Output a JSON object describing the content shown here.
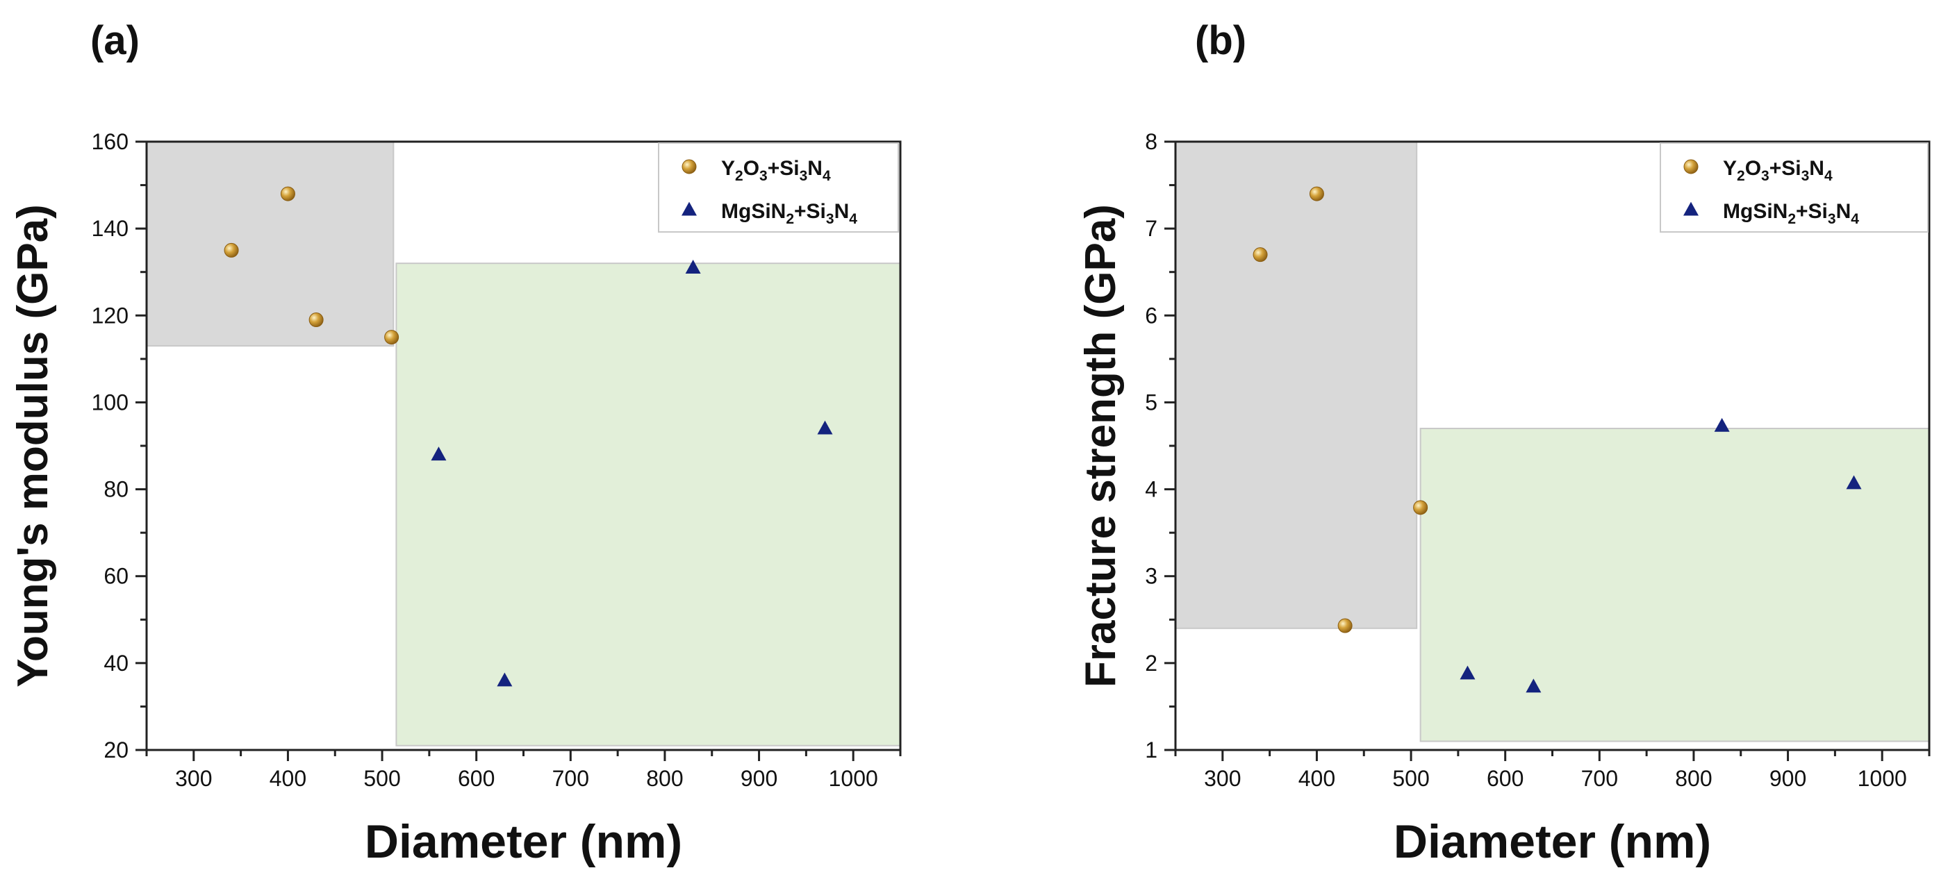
{
  "chart_data": [
    {
      "type": "scatter",
      "panel_label": "(a)",
      "xlabel": "Diameter (nm)",
      "ylabel": "Young's modulus (GPa)",
      "xlim": [
        250,
        1050
      ],
      "ylim": [
        20,
        160
      ],
      "xticks": [
        300,
        400,
        500,
        600,
        700,
        800,
        900,
        1000
      ],
      "yticks": [
        20,
        40,
        60,
        80,
        100,
        120,
        140,
        160
      ],
      "regions": [
        {
          "name": "gray-region",
          "color": "#d9d9d9",
          "x": [
            250,
            512
          ],
          "y": [
            113,
            160
          ]
        },
        {
          "name": "green-region",
          "color": "#e2efd9",
          "x": [
            515,
            1050
          ],
          "y": [
            21,
            132
          ]
        }
      ],
      "legend": {
        "position": "top-right"
      },
      "series": [
        {
          "name": "Y2O3+Si3N4",
          "marker": "circle",
          "color": "#b8860b",
          "legend_parts": [
            {
              "t": "Y"
            },
            {
              "t": "2",
              "sub": true
            },
            {
              "t": "O"
            },
            {
              "t": "3",
              "sub": true
            },
            {
              "t": "+Si"
            },
            {
              "t": "3",
              "sub": true
            },
            {
              "t": "N"
            },
            {
              "t": "4",
              "sub": true
            }
          ],
          "x": [
            340,
            400,
            430,
            510
          ],
          "y": [
            135,
            148,
            119,
            115
          ]
        },
        {
          "name": "MgSiN2+Si3N4",
          "marker": "triangle",
          "color": "#14237e",
          "legend_parts": [
            {
              "t": "MgSiN"
            },
            {
              "t": "2",
              "sub": true
            },
            {
              "t": "+Si"
            },
            {
              "t": "3",
              "sub": true
            },
            {
              "t": "N"
            },
            {
              "t": "4",
              "sub": true
            }
          ],
          "x": [
            560,
            630,
            830,
            970
          ],
          "y": [
            88,
            36,
            131,
            94
          ]
        }
      ]
    },
    {
      "type": "scatter",
      "panel_label": "(b)",
      "xlabel": "Diameter (nm)",
      "ylabel": "Fracture strength (GPa)",
      "xlim": [
        250,
        1050
      ],
      "ylim": [
        1,
        8
      ],
      "xticks": [
        300,
        400,
        500,
        600,
        700,
        800,
        900,
        1000
      ],
      "yticks": [
        1,
        2,
        3,
        4,
        5,
        6,
        7,
        8
      ],
      "regions": [
        {
          "name": "gray-region",
          "color": "#d9d9d9",
          "x": [
            250,
            506
          ],
          "y": [
            2.4,
            8
          ]
        },
        {
          "name": "green-region",
          "color": "#e2efd9",
          "x": [
            510,
            1050
          ],
          "y": [
            1.1,
            4.7
          ]
        }
      ],
      "legend": {
        "position": "top-right"
      },
      "series": [
        {
          "name": "Y2O3+Si3N4",
          "marker": "circle",
          "color": "#b8860b",
          "legend_parts": [
            {
              "t": "Y"
            },
            {
              "t": "2",
              "sub": true
            },
            {
              "t": "O"
            },
            {
              "t": "3",
              "sub": true
            },
            {
              "t": "+Si"
            },
            {
              "t": "3",
              "sub": true
            },
            {
              "t": "N"
            },
            {
              "t": "4",
              "sub": true
            }
          ],
          "x": [
            340,
            400,
            430,
            510
          ],
          "y": [
            6.7,
            7.4,
            2.43,
            3.79
          ]
        },
        {
          "name": "MgSiN2+Si3N4",
          "marker": "triangle",
          "color": "#14237e",
          "legend_parts": [
            {
              "t": "MgSiN"
            },
            {
              "t": "2",
              "sub": true
            },
            {
              "t": "+Si"
            },
            {
              "t": "3",
              "sub": true
            },
            {
              "t": "N"
            },
            {
              "t": "4",
              "sub": true
            }
          ],
          "x": [
            560,
            630,
            830,
            970
          ],
          "y": [
            1.88,
            1.73,
            4.73,
            4.07
          ]
        }
      ]
    }
  ]
}
